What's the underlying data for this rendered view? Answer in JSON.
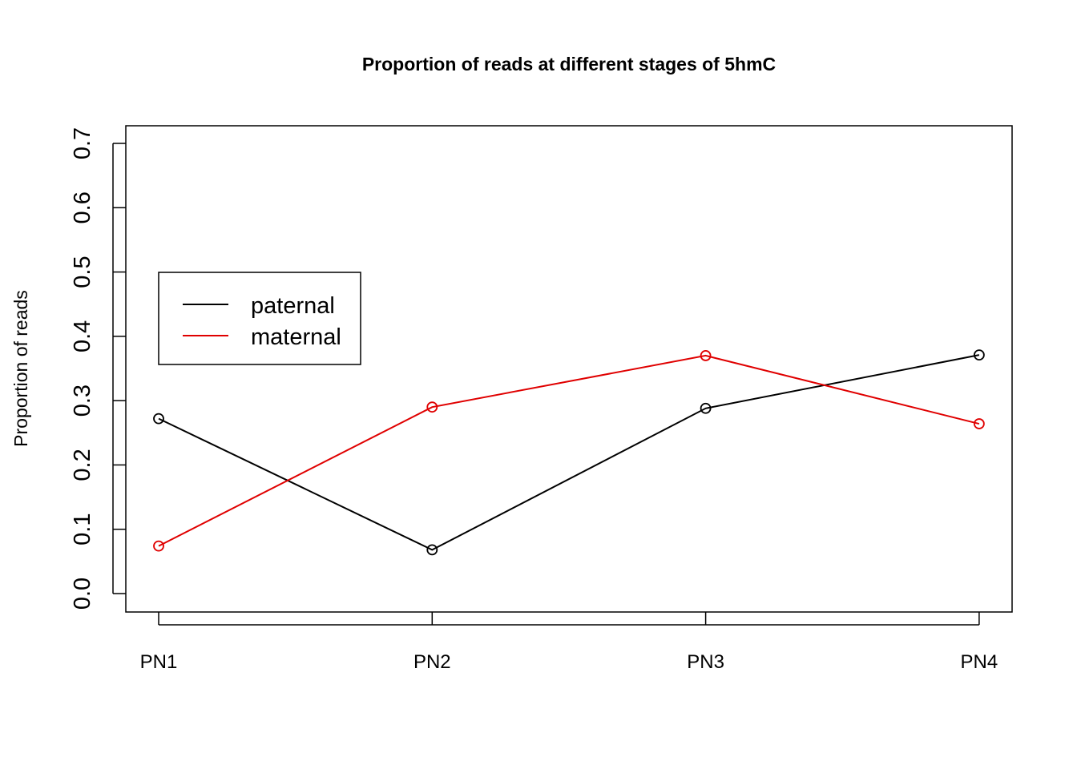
{
  "chart_data": {
    "type": "line",
    "title": "Proportion of reads at different stages of 5hmC",
    "xlabel": "",
    "ylabel": "Proportion of reads",
    "categories": [
      "PN1",
      "PN2",
      "PN3",
      "PN4"
    ],
    "ylim": [
      0.0,
      0.7
    ],
    "yticks": [
      "0.0",
      "0.1",
      "0.2",
      "0.3",
      "0.4",
      "0.5",
      "0.6",
      "0.7"
    ],
    "grid": false,
    "legend_position": "left",
    "series": [
      {
        "name": "paternal",
        "color": "#000000",
        "values": [
          0.272,
          0.068,
          0.288,
          0.371
        ]
      },
      {
        "name": "maternal",
        "color": "#e00000",
        "values": [
          0.074,
          0.29,
          0.37,
          0.264
        ]
      }
    ]
  }
}
